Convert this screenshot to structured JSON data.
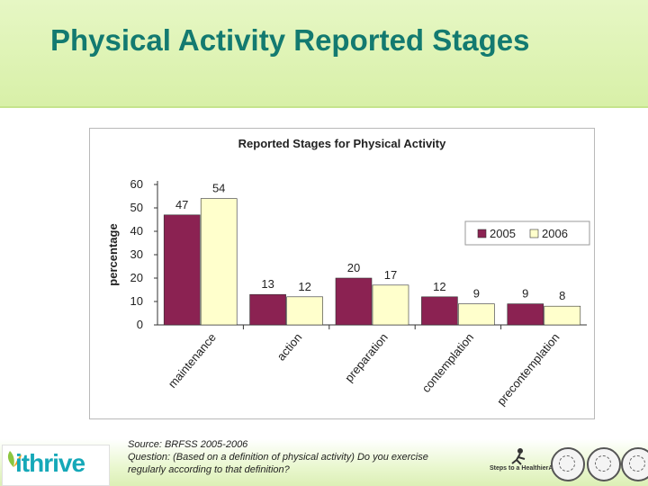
{
  "header": {
    "title": "Physical Activity Reported Stages"
  },
  "chart_data": {
    "type": "bar",
    "title": "Reported Stages for Physical Activity",
    "xlabel": "",
    "ylabel": "percentage",
    "ylim": [
      0,
      60
    ],
    "yticks": [
      0,
      10,
      20,
      30,
      40,
      50,
      60
    ],
    "categories": [
      "maintenance",
      "action",
      "preparation",
      "contemplation",
      "precontemplation"
    ],
    "series": [
      {
        "name": "2005",
        "values": [
          47,
          13,
          20,
          12,
          9
        ],
        "color": "#8b2252"
      },
      {
        "name": "2006",
        "values": [
          54,
          12,
          17,
          9,
          8
        ],
        "color": "#ffffcc"
      }
    ],
    "data_labels": true,
    "legend_position": "right",
    "grid": false
  },
  "source": {
    "line1": "Source: BRFSS 2005-2006",
    "line2": "Question: (Based on a definition of physical activity) Do you exercise",
    "line3": "regularly according to that definition?"
  },
  "logo": {
    "text": "ithrive"
  },
  "partners": {
    "steps_text": "Steps to a HealthierAUSTIN"
  }
}
